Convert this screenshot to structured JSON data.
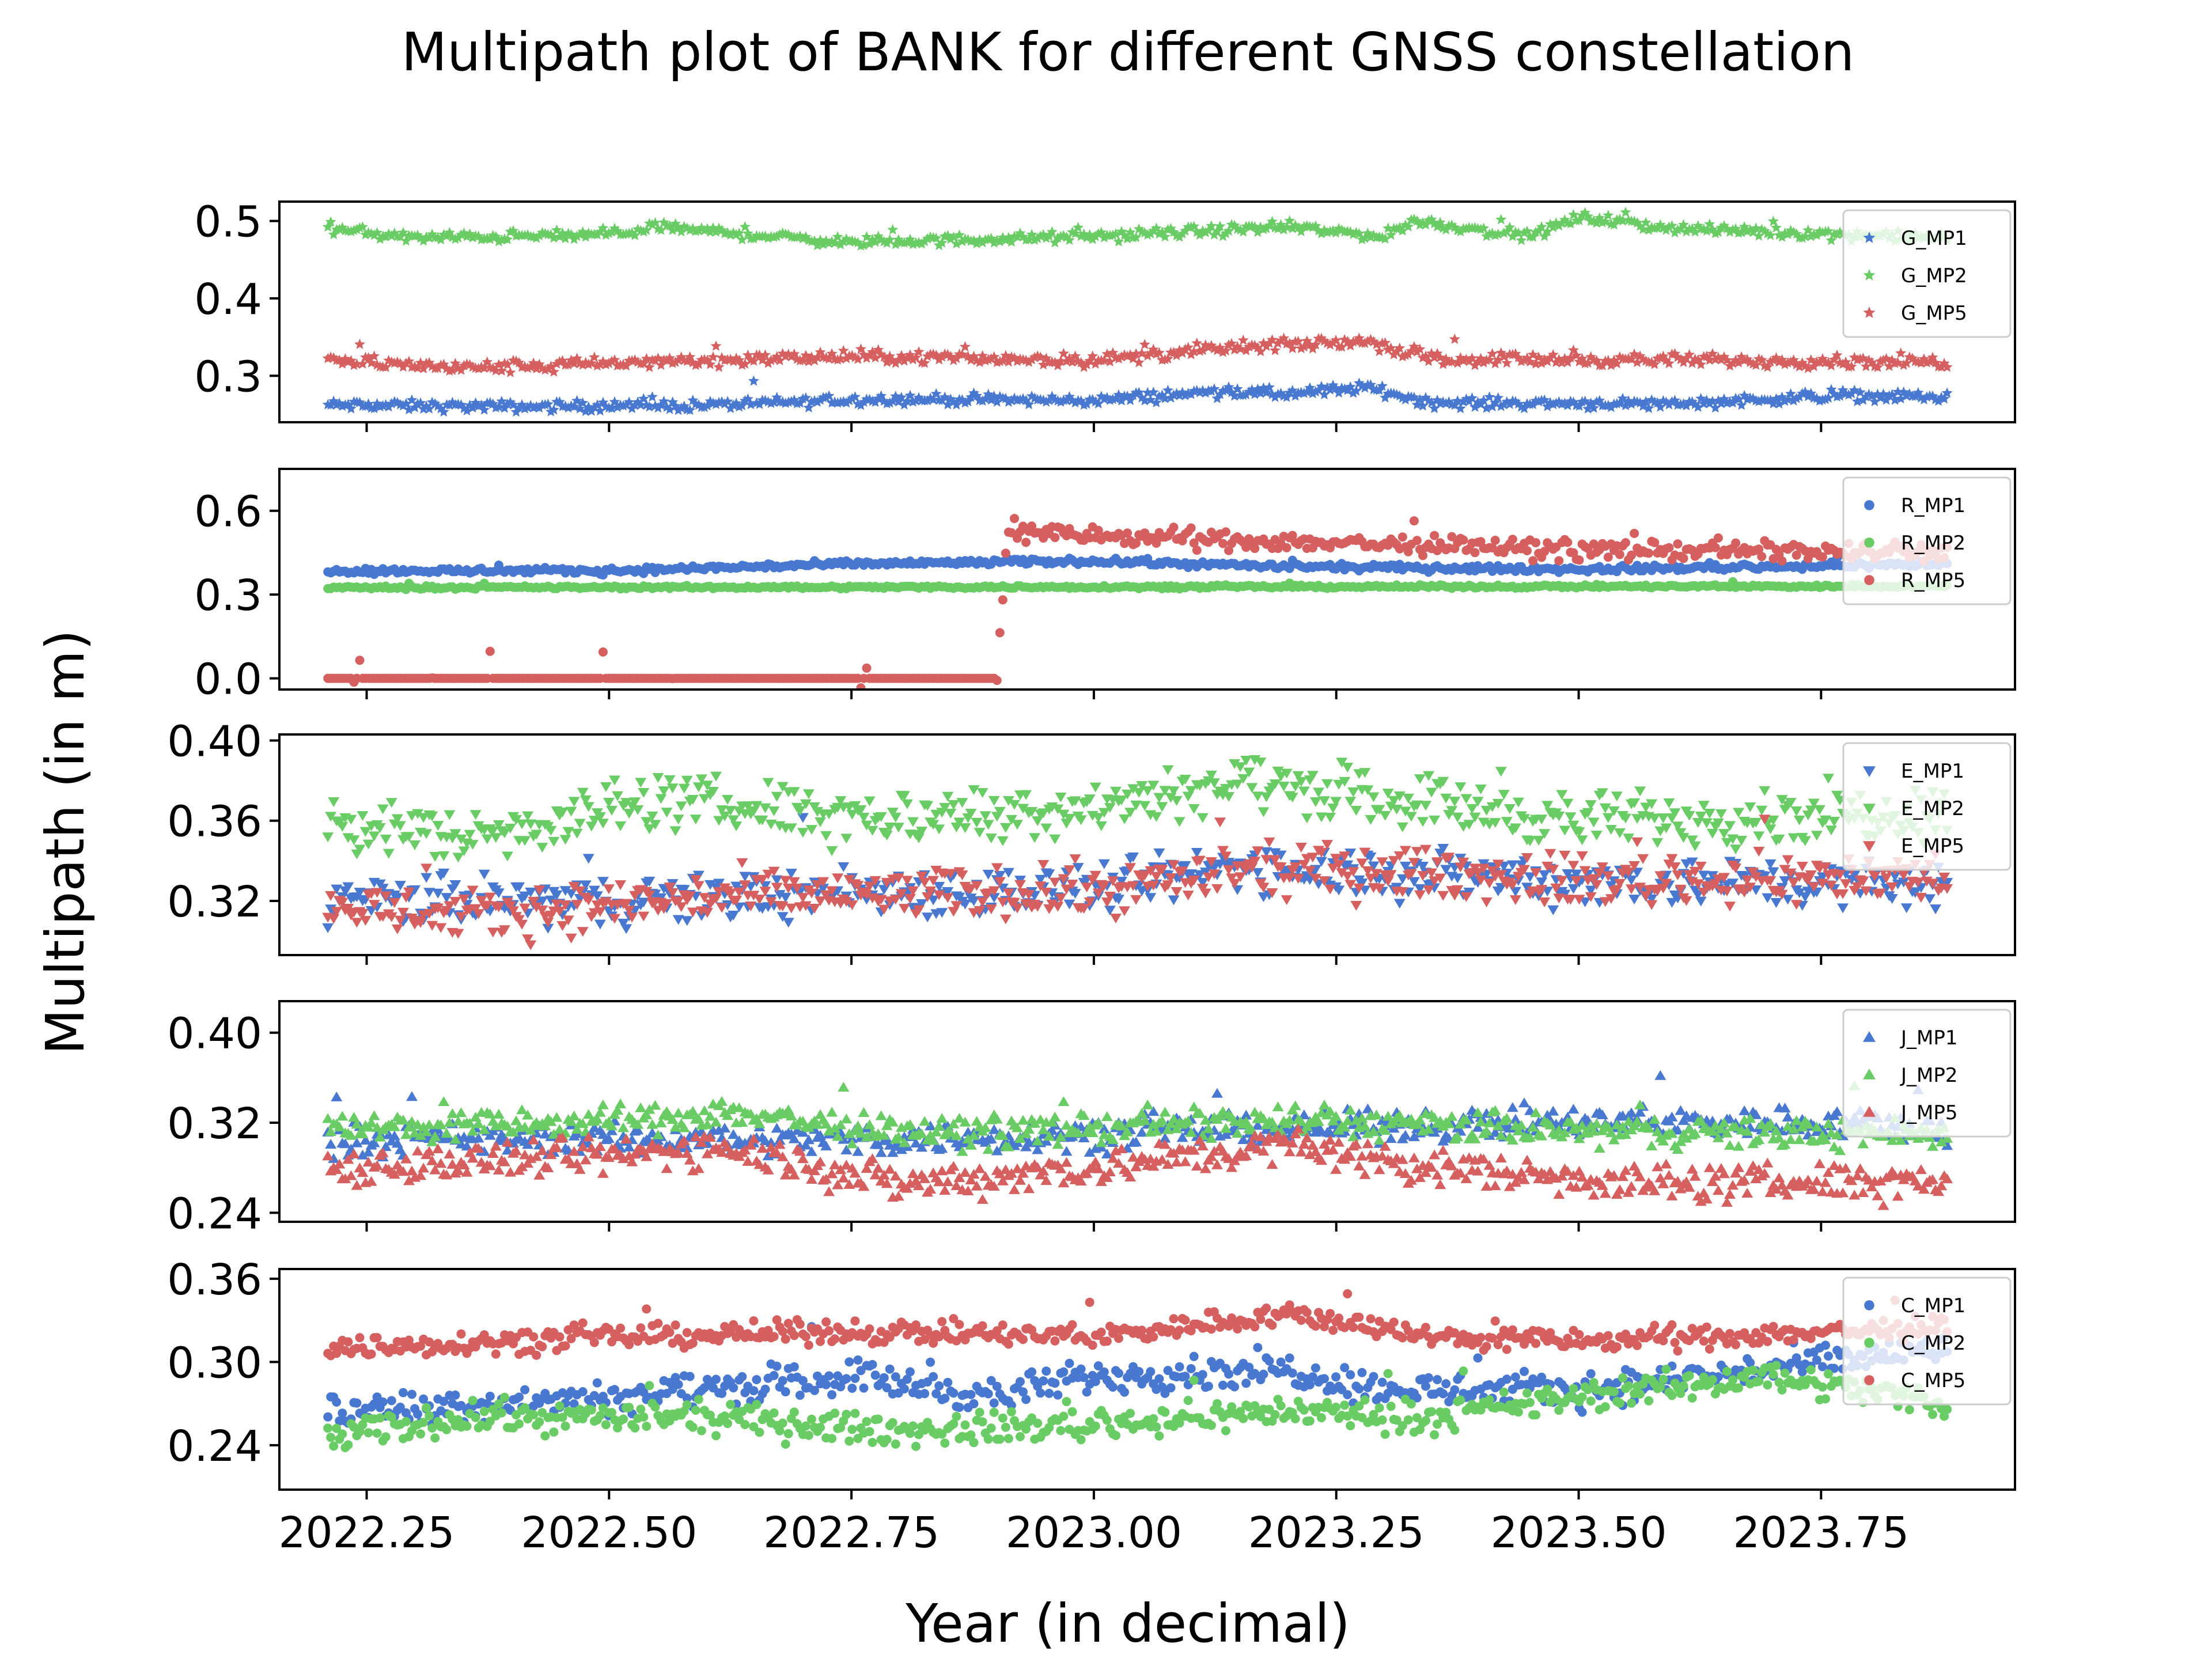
{
  "figure": {
    "title": "Multipath plot of BANK for different GNSS constellation",
    "xlabel": "Year (in decimal)",
    "ylabel": "Multipath (in m)"
  },
  "colors": {
    "MP1": "#4878d0",
    "MP2": "#6acc64",
    "MP5": "#d65f5f"
  },
  "chart_data": [
    {
      "type": "scatter",
      "constellation": "G",
      "marker": "star",
      "xlim": [
        2022.16,
        2023.95
      ],
      "ylim": [
        0.24,
        0.525
      ],
      "yticks": [
        0.3,
        0.4,
        0.5
      ],
      "ytick_labels": [
        "0.3",
        "0.4",
        "0.5"
      ],
      "xticks": [
        2022.25,
        2022.5,
        2022.75,
        2023.0,
        2023.25,
        2023.5,
        2023.75
      ],
      "legend_position": "upper-right",
      "x_range": [
        2022.21,
        2023.88
      ],
      "series": [
        {
          "name": "G_MP1",
          "color_key": "MP1",
          "trend": [
            [
              2022.21,
              0.262
            ],
            [
              2022.4,
              0.26
            ],
            [
              2022.6,
              0.262
            ],
            [
              2022.78,
              0.27
            ],
            [
              2023.0,
              0.268
            ],
            [
              2023.13,
              0.28
            ],
            [
              2023.2,
              0.276
            ],
            [
              2023.28,
              0.285
            ],
            [
              2023.35,
              0.265
            ],
            [
              2023.6,
              0.264
            ],
            [
              2023.78,
              0.275
            ],
            [
              2023.88,
              0.272
            ]
          ],
          "noise": 0.005
        },
        {
          "name": "G_MP2",
          "color_key": "MP2",
          "trend": [
            [
              2022.21,
              0.49
            ],
            [
              2022.3,
              0.478
            ],
            [
              2022.5,
              0.482
            ],
            [
              2022.55,
              0.492
            ],
            [
              2022.75,
              0.472
            ],
            [
              2023.0,
              0.48
            ],
            [
              2023.2,
              0.492
            ],
            [
              2023.3,
              0.48
            ],
            [
              2023.33,
              0.5
            ],
            [
              2023.45,
              0.48
            ],
            [
              2023.5,
              0.505
            ],
            [
              2023.6,
              0.49
            ],
            [
              2023.88,
              0.478
            ]
          ],
          "noise": 0.005
        },
        {
          "name": "G_MP5",
          "color_key": "MP5",
          "trend": [
            [
              2022.21,
              0.32
            ],
            [
              2022.35,
              0.31
            ],
            [
              2022.6,
              0.32
            ],
            [
              2022.75,
              0.325
            ],
            [
              2023.0,
              0.32
            ],
            [
              2023.13,
              0.335
            ],
            [
              2023.28,
              0.345
            ],
            [
              2023.35,
              0.322
            ],
            [
              2023.88,
              0.318
            ]
          ],
          "noise": 0.006
        }
      ]
    },
    {
      "type": "scatter",
      "constellation": "R",
      "marker": "circle",
      "xlim": [
        2022.16,
        2023.95
      ],
      "ylim": [
        -0.04,
        0.75
      ],
      "yticks": [
        0.0,
        0.3,
        0.6
      ],
      "ytick_labels": [
        "0.0",
        "0.3",
        "0.6"
      ],
      "xticks": [
        2022.25,
        2022.5,
        2022.75,
        2023.0,
        2023.25,
        2023.5,
        2023.75
      ],
      "legend_position": "upper-right",
      "x_range": [
        2022.21,
        2023.88
      ],
      "series": [
        {
          "name": "R_MP1",
          "color_key": "MP1",
          "trend": [
            [
              2022.21,
              0.385
            ],
            [
              2022.5,
              0.385
            ],
            [
              2022.75,
              0.41
            ],
            [
              2023.0,
              0.42
            ],
            [
              2023.2,
              0.4
            ],
            [
              2023.5,
              0.39
            ],
            [
              2023.88,
              0.41
            ]
          ],
          "noise": 0.008
        },
        {
          "name": "R_MP2",
          "color_key": "MP2",
          "trend": [
            [
              2022.21,
              0.325
            ],
            [
              2023.88,
              0.33
            ]
          ],
          "noise": 0.004
        },
        {
          "name": "R_MP5",
          "color_key": "MP5",
          "trend": [
            [
              2022.21,
              0.0
            ],
            [
              2022.9,
              0.0
            ],
            [
              2022.91,
              0.52
            ],
            [
              2023.1,
              0.5
            ],
            [
              2023.5,
              0.46
            ],
            [
              2023.88,
              0.45
            ]
          ],
          "noise": 0.025,
          "from": 2022.9
        }
      ]
    },
    {
      "type": "scatter",
      "constellation": "E",
      "marker": "triangle-down",
      "xlim": [
        2022.16,
        2023.95
      ],
      "ylim": [
        0.293,
        0.403
      ],
      "yticks": [
        0.32,
        0.36,
        0.4
      ],
      "ytick_labels": [
        "0.32",
        "0.36",
        "0.40"
      ],
      "xticks": [
        2022.25,
        2022.5,
        2022.75,
        2023.0,
        2023.25,
        2023.5,
        2023.75
      ],
      "legend_position": "upper-right",
      "x_range": [
        2022.21,
        2023.88
      ],
      "series": [
        {
          "name": "E_MP1",
          "color_key": "MP1",
          "trend": [
            [
              2022.21,
              0.32
            ],
            [
              2022.5,
              0.32
            ],
            [
              2022.75,
              0.325
            ],
            [
              2023.0,
              0.325
            ],
            [
              2023.15,
              0.338
            ],
            [
              2023.3,
              0.335
            ],
            [
              2023.5,
              0.33
            ],
            [
              2023.88,
              0.328
            ]
          ],
          "noise": 0.009
        },
        {
          "name": "E_MP2",
          "color_key": "MP2",
          "trend": [
            [
              2022.21,
              0.36
            ],
            [
              2022.35,
              0.352
            ],
            [
              2022.55,
              0.37
            ],
            [
              2022.8,
              0.362
            ],
            [
              2023.0,
              0.368
            ],
            [
              2023.15,
              0.38
            ],
            [
              2023.3,
              0.372
            ],
            [
              2023.5,
              0.36
            ],
            [
              2023.88,
              0.365
            ]
          ],
          "noise": 0.01
        },
        {
          "name": "E_MP5",
          "color_key": "MP5",
          "trend": [
            [
              2022.21,
              0.318
            ],
            [
              2022.35,
              0.312
            ],
            [
              2022.6,
              0.322
            ],
            [
              2023.0,
              0.325
            ],
            [
              2023.15,
              0.335
            ],
            [
              2023.3,
              0.335
            ],
            [
              2023.5,
              0.33
            ],
            [
              2023.88,
              0.332
            ]
          ],
          "noise": 0.009
        }
      ]
    },
    {
      "type": "scatter",
      "constellation": "J",
      "marker": "triangle-up",
      "xlim": [
        2022.16,
        2023.95
      ],
      "ylim": [
        0.232,
        0.428
      ],
      "yticks": [
        0.24,
        0.32,
        0.4
      ],
      "ytick_labels": [
        "0.24",
        "0.32",
        "0.40"
      ],
      "xticks": [
        2022.25,
        2022.5,
        2022.75,
        2023.0,
        2023.25,
        2023.5,
        2023.75
      ],
      "legend_position": "upper-right",
      "x_range": [
        2022.21,
        2023.88
      ],
      "series": [
        {
          "name": "J_MP1",
          "color_key": "MP1",
          "trend": [
            [
              2022.21,
              0.305
            ],
            [
              2022.5,
              0.305
            ],
            [
              2022.8,
              0.305
            ],
            [
              2023.0,
              0.31
            ],
            [
              2023.2,
              0.315
            ],
            [
              2023.5,
              0.32
            ],
            [
              2023.8,
              0.32
            ],
            [
              2023.88,
              0.31
            ]
          ],
          "noise": 0.01
        },
        {
          "name": "J_MP2",
          "color_key": "MP2",
          "trend": [
            [
              2022.21,
              0.315
            ],
            [
              2022.5,
              0.32
            ],
            [
              2022.62,
              0.33
            ],
            [
              2022.8,
              0.31
            ],
            [
              2023.0,
              0.315
            ],
            [
              2023.2,
              0.322
            ],
            [
              2023.5,
              0.312
            ],
            [
              2023.88,
              0.31
            ]
          ],
          "noise": 0.01
        },
        {
          "name": "J_MP5",
          "color_key": "MP5",
          "trend": [
            [
              2022.21,
              0.28
            ],
            [
              2022.5,
              0.29
            ],
            [
              2022.62,
              0.3
            ],
            [
              2022.8,
              0.265
            ],
            [
              2023.0,
              0.28
            ],
            [
              2023.2,
              0.3
            ],
            [
              2023.35,
              0.28
            ],
            [
              2023.6,
              0.265
            ],
            [
              2023.88,
              0.27
            ]
          ],
          "noise": 0.012
        }
      ]
    },
    {
      "type": "scatter",
      "constellation": "C",
      "marker": "circle",
      "xlim": [
        2022.16,
        2023.95
      ],
      "ylim": [
        0.208,
        0.367
      ],
      "yticks": [
        0.24,
        0.3,
        0.36
      ],
      "ytick_labels": [
        "0.24",
        "0.30",
        "0.36"
      ],
      "xticks": [
        2022.25,
        2022.5,
        2022.75,
        2023.0,
        2023.25,
        2023.5,
        2023.75
      ],
      "legend_position": "upper-right",
      "x_range": [
        2022.21,
        2023.88
      ],
      "series": [
        {
          "name": "C_MP1",
          "color_key": "MP1",
          "trend": [
            [
              2022.21,
              0.265
            ],
            [
              2022.5,
              0.275
            ],
            [
              2022.75,
              0.29
            ],
            [
              2022.9,
              0.275
            ],
            [
              2023.0,
              0.29
            ],
            [
              2023.2,
              0.295
            ],
            [
              2023.3,
              0.28
            ],
            [
              2023.5,
              0.28
            ],
            [
              2023.7,
              0.295
            ],
            [
              2023.88,
              0.31
            ]
          ],
          "noise": 0.009
        },
        {
          "name": "C_MP2",
          "color_key": "MP2",
          "trend": [
            [
              2022.21,
              0.245
            ],
            [
              2022.35,
              0.26
            ],
            [
              2022.6,
              0.26
            ],
            [
              2022.8,
              0.25
            ],
            [
              2023.0,
              0.255
            ],
            [
              2023.2,
              0.265
            ],
            [
              2023.35,
              0.26
            ],
            [
              2023.5,
              0.275
            ],
            [
              2023.7,
              0.29
            ],
            [
              2023.88,
              0.27
            ]
          ],
          "noise": 0.008
        },
        {
          "name": "C_MP5",
          "color_key": "MP5",
          "trend": [
            [
              2022.21,
              0.31
            ],
            [
              2022.5,
              0.318
            ],
            [
              2022.75,
              0.322
            ],
            [
              2023.0,
              0.318
            ],
            [
              2023.2,
              0.335
            ],
            [
              2023.35,
              0.318
            ],
            [
              2023.5,
              0.315
            ],
            [
              2023.88,
              0.325
            ]
          ],
          "noise": 0.006
        }
      ]
    }
  ]
}
